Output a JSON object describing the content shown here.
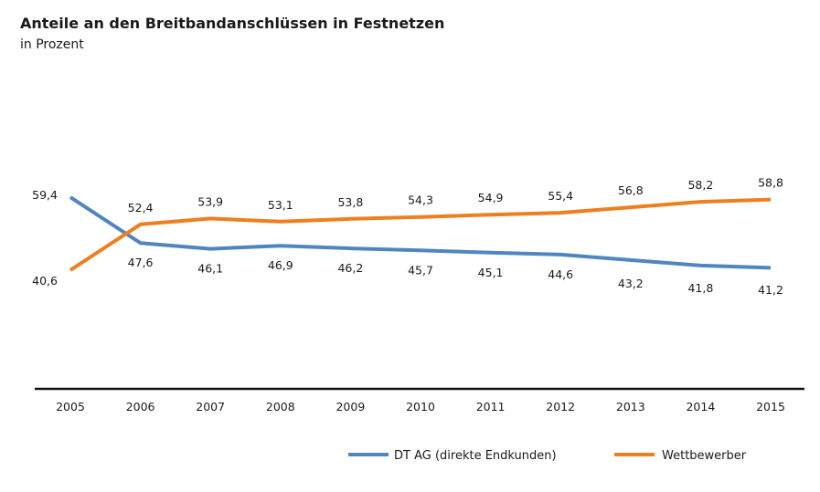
{
  "chart_data": {
    "type": "line",
    "title": "Anteile an den Breitbandanschlüssen in Festnetzen",
    "subtitle": "in Prozent",
    "xlabel": "",
    "ylabel": "",
    "categories": [
      "2005",
      "2006",
      "2007",
      "2008",
      "2009",
      "2010",
      "2011",
      "2012",
      "2013",
      "2014",
      "2015"
    ],
    "ylim": [
      10,
      90
    ],
    "grid": false,
    "legend": "bottom",
    "series": [
      {
        "name": "DT AG (direkte Endkunden)",
        "color": "#4f86c0",
        "values": [
          59.4,
          47.6,
          46.1,
          46.9,
          46.2,
          45.7,
          45.1,
          44.6,
          43.2,
          41.8,
          41.2
        ],
        "labels": [
          "59,4",
          "47,6",
          "46,1",
          "46,9",
          "46,2",
          "45,7",
          "45,1",
          "44,6",
          "43,2",
          "41,8",
          "41,2"
        ]
      },
      {
        "name": "Wettbewerber",
        "color": "#ee7f1e",
        "values": [
          40.6,
          52.4,
          53.9,
          53.1,
          53.8,
          54.3,
          54.9,
          55.4,
          56.8,
          58.2,
          58.8
        ],
        "labels": [
          "40,6",
          "52,4",
          "53,9",
          "53,1",
          "53,8",
          "54,3",
          "54,9",
          "55,4",
          "56,8",
          "58,2",
          "58,8"
        ]
      }
    ]
  }
}
